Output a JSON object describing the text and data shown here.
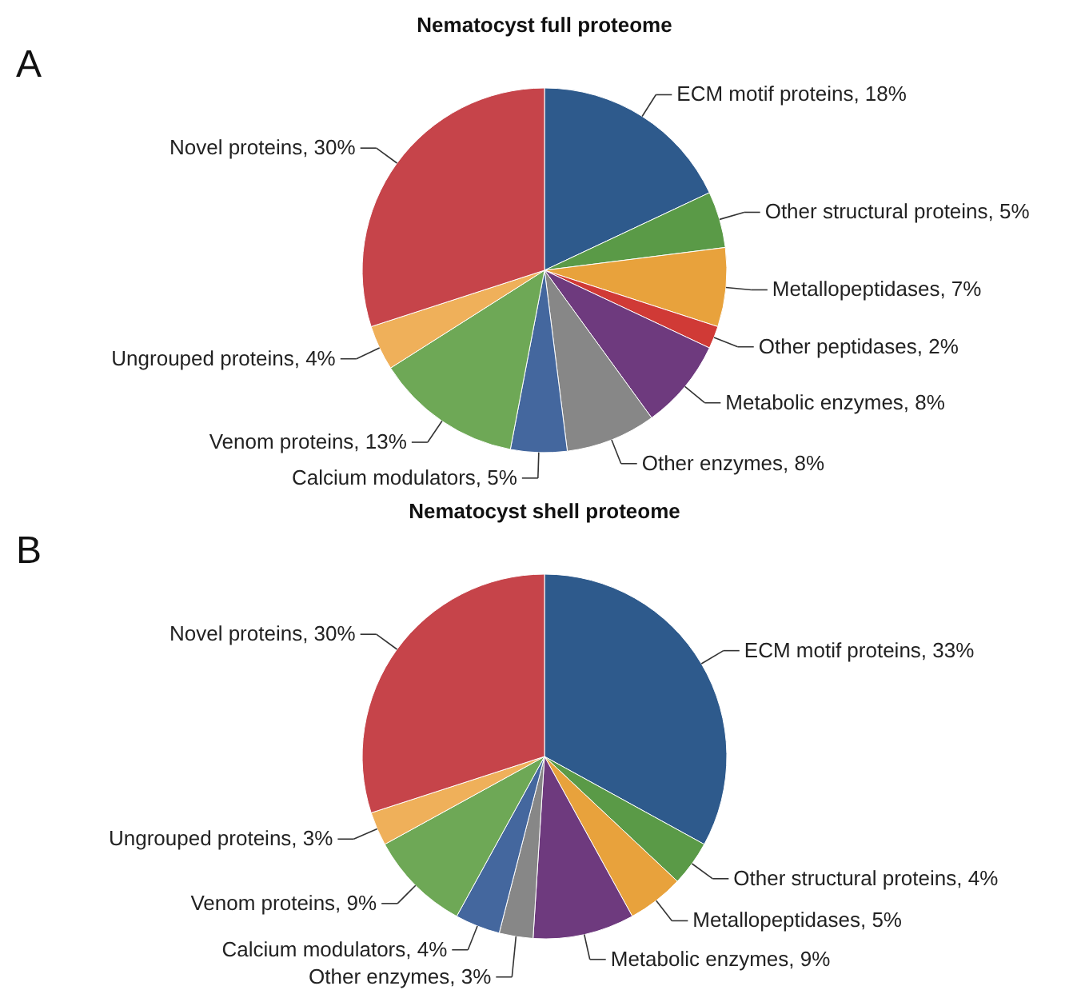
{
  "chart_data": [
    {
      "type": "pie",
      "title": "Nematocyst full proteome",
      "annotations": [
        "A"
      ],
      "categories": [
        "ECM motif proteins",
        "Other structural proteins",
        "Metallopeptidases",
        "Other peptidases",
        "Metabolic enzymes",
        "Other enzymes",
        "Calcium modulators",
        "Venom proteins",
        "Ungrouped proteins",
        "Novel proteins"
      ],
      "values": [
        18,
        5,
        7,
        2,
        8,
        8,
        5,
        13,
        4,
        30
      ],
      "value_labels": [
        "18%",
        "5%",
        "7%",
        "2%",
        "8%",
        "8%",
        "5%",
        "13%",
        "4%",
        "30%"
      ],
      "colors": [
        "#2e5a8c",
        "#5a9a47",
        "#e8a23c",
        "#d03a36",
        "#6e3a7e",
        "#878787",
        "#44679e",
        "#6ea856",
        "#efb05a",
        "#c6444a"
      ]
    },
    {
      "type": "pie",
      "title": "Nematocyst shell proteome",
      "annotations": [
        "B"
      ],
      "categories": [
        "ECM motif proteins",
        "Other structural proteins",
        "Metallopeptidases",
        "Metabolic enzymes",
        "Other enzymes",
        "Calcium modulators",
        "Venom proteins",
        "Ungrouped proteins",
        "Novel proteins"
      ],
      "values": [
        33,
        4,
        5,
        9,
        3,
        4,
        9,
        3,
        30
      ],
      "value_labels": [
        "33%",
        "4%",
        "5%",
        "9%",
        "3%",
        "4%",
        "9%",
        "3%",
        "30%"
      ],
      "colors": [
        "#2e5a8c",
        "#5a9a47",
        "#e8a23c",
        "#6e3a7e",
        "#878787",
        "#44679e",
        "#6ea856",
        "#efb05a",
        "#c6444a"
      ]
    }
  ]
}
